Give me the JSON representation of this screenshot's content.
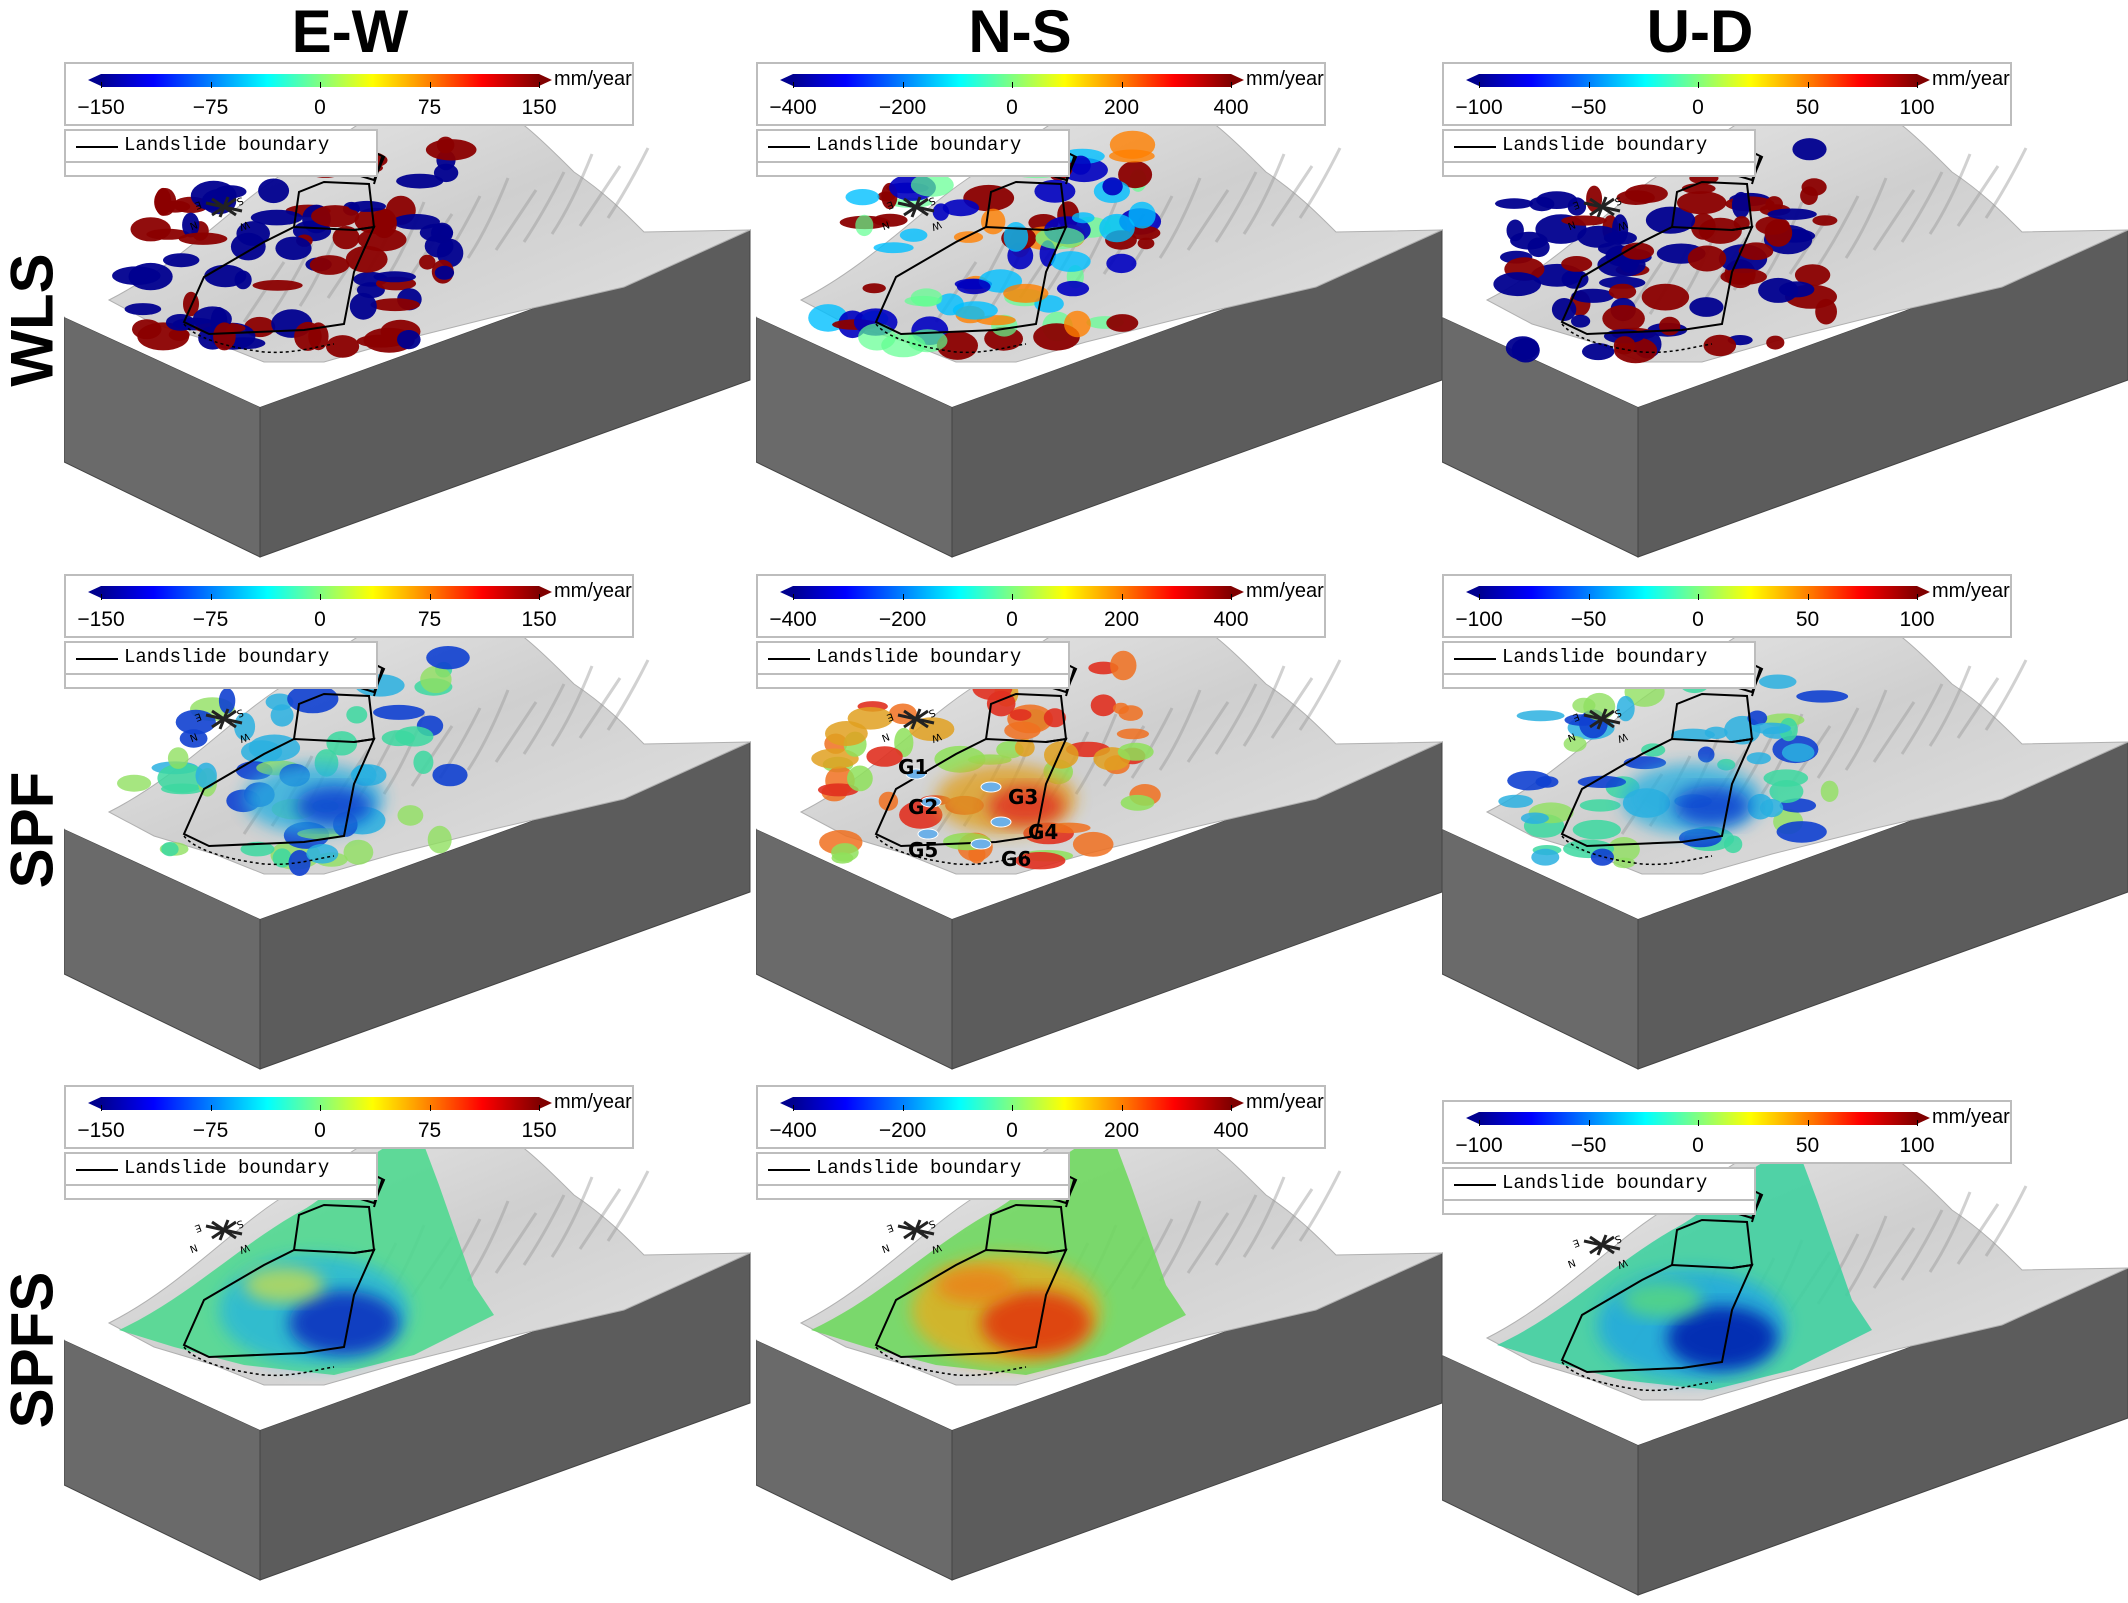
{
  "columns": [
    "E-W",
    "N-S",
    "U-D"
  ],
  "rows": [
    "WLS",
    "SPF",
    "SPFS"
  ],
  "unit": "mm/year",
  "legend_label": "Landslide boundary",
  "colorbars": {
    "ew": [
      "−150",
      "−75",
      "0",
      "75",
      "150"
    ],
    "ns": [
      "−400",
      "−200",
      "0",
      "200",
      "400"
    ],
    "ud": [
      "−100",
      "−50",
      "0",
      "50",
      "100"
    ]
  },
  "gps_labels": [
    "G1",
    "G2",
    "G3",
    "G4",
    "G5",
    "G6"
  ],
  "compass_labels": {
    "s": "S",
    "n": "N",
    "e": "E",
    "w": "W"
  },
  "colors": {
    "terrain": "#d8d8d8",
    "base": "#6e6e6e",
    "boundary": "#000000"
  }
}
